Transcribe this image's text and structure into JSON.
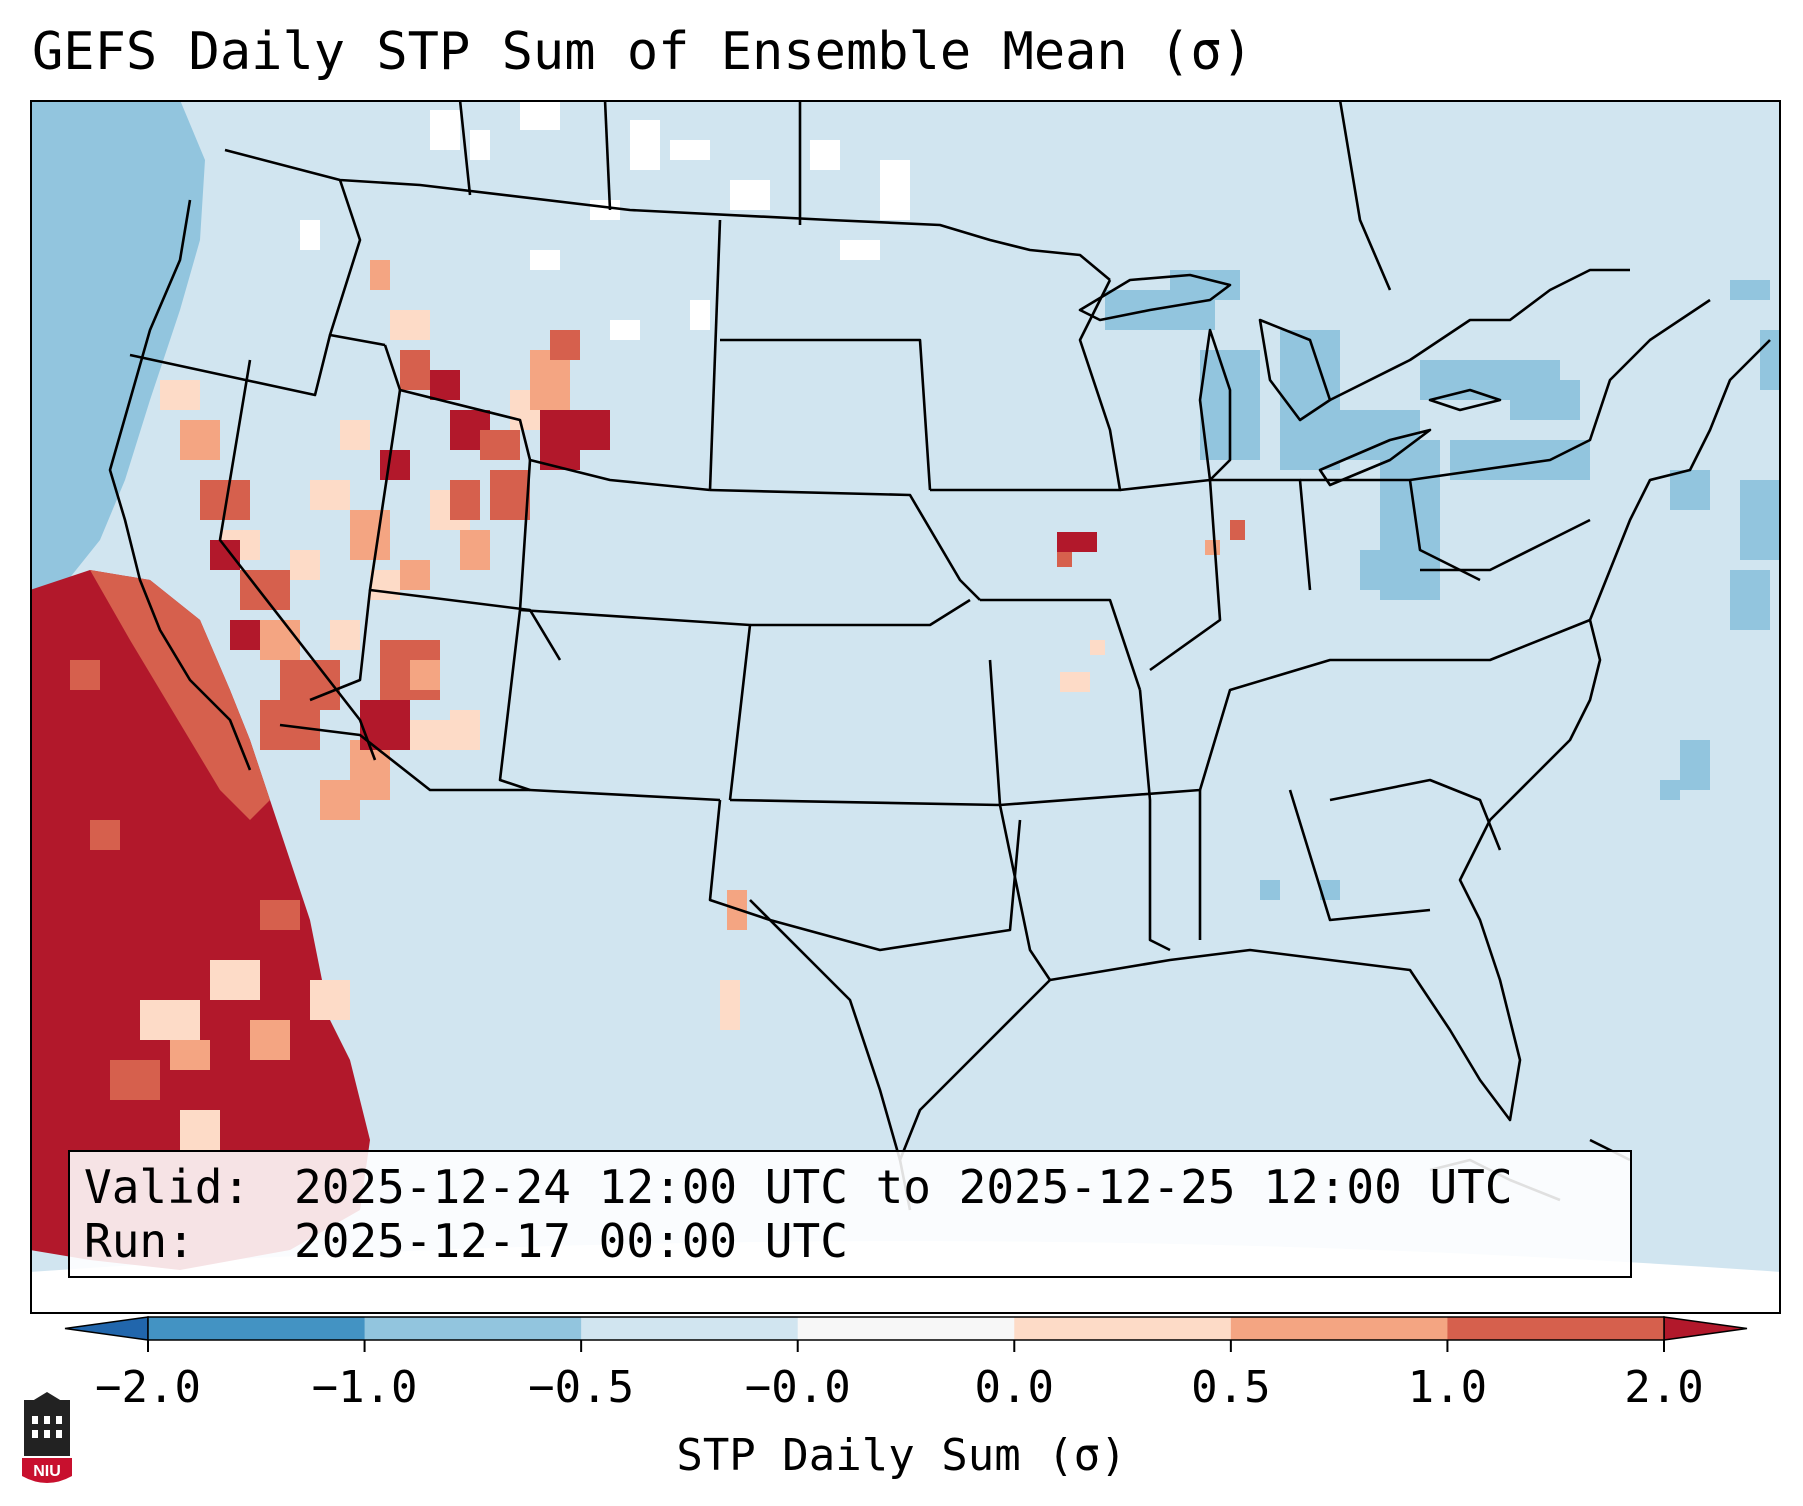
{
  "title": "GEFS Daily STP Sum of Ensemble Mean (σ)",
  "info": {
    "valid_label": "Valid:",
    "valid_value": "2025-12-24 12:00 UTC to 2025-12-25 12:00 UTC",
    "run_label": "Run:",
    "run_value": "2025-12-17 00:00 UTC"
  },
  "colorbar": {
    "label": "STP Daily Sum (σ)",
    "ticks": [
      "−2.0",
      "−1.0",
      "−0.5",
      "−0.0",
      "0.0",
      "0.5",
      "1.0",
      "2.0"
    ],
    "colors": [
      "#4393c3",
      "#92c5de",
      "#d1e5f0",
      "#f7f7f7",
      "#fddbc7",
      "#f4a582",
      "#d6604d"
    ],
    "under_color": "#2166ac",
    "over_color": "#b2182b"
  },
  "map": {
    "background_color": "#d1e5f0",
    "anomaly_regions": [
      {
        "name": "Pacific coast offshore",
        "category": "-0.5 to -1.0"
      },
      {
        "name": "Southern California / Baja offshore",
        "category": "> 2.0"
      },
      {
        "name": "Central Valley California",
        "category": "0.0 to 2.0"
      },
      {
        "name": "Idaho / Western Wyoming",
        "category": "0.0 to 2.0"
      },
      {
        "name": "Northern Illinois",
        "category": "> 2.0"
      },
      {
        "name": "Great Lakes",
        "category": "-0.5 to -1.0"
      },
      {
        "name": "Western Atlantic",
        "category": "-0.5 to -1.0"
      }
    ]
  },
  "logo": {
    "text": "NIU"
  }
}
